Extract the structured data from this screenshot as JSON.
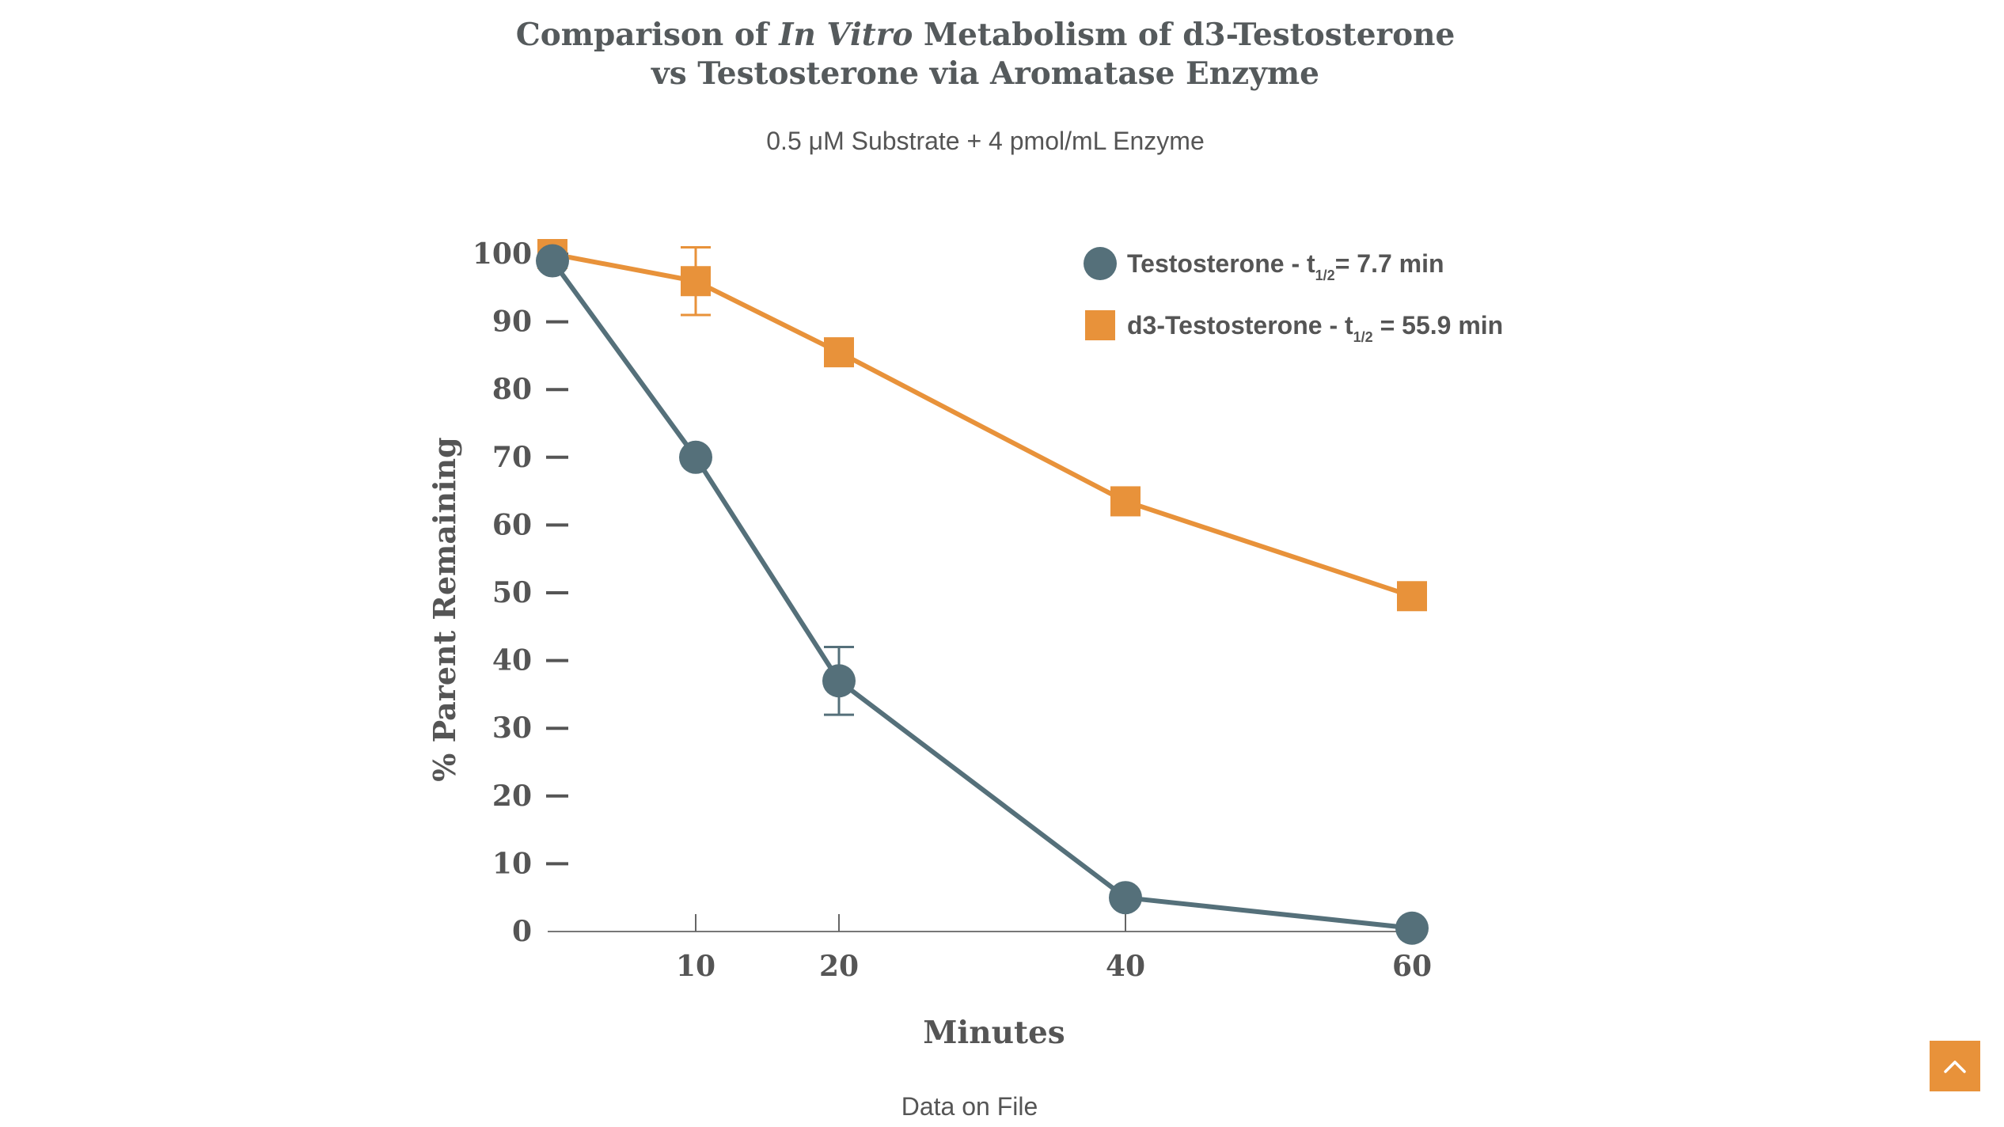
{
  "page": {
    "title_part1": "Comparison of ",
    "title_italic": "In Vitro",
    "title_part2": " Metabolism of d3-Testosterone",
    "title_line2": "vs Testosterone via Aromatase Enzyme",
    "subtitle": "0.5 μM Substrate + 4 pmol/mL Enzyme",
    "footnote": "Data on File",
    "scroll_top_icon": "chevron-up-icon"
  },
  "chart_data": {
    "type": "line",
    "title": "Comparison of In Vitro Metabolism of d3-Testosterone vs Testosterone via Aromatase Enzyme",
    "subtitle": "0.5 μM Substrate + 4 pmol/mL Enzyme",
    "xlabel": "Minutes",
    "ylabel": "% Parent Remaining",
    "x_ticks": [
      10,
      20,
      40,
      60
    ],
    "y_ticks": [
      0,
      10,
      20,
      30,
      40,
      50,
      60,
      70,
      80,
      90,
      100
    ],
    "xlim": [
      0,
      60
    ],
    "ylim": [
      0,
      100
    ],
    "legend_position": "top-right",
    "series": [
      {
        "name": "Testosterone",
        "legend_prefix": "Testosterone - t",
        "legend_sub": "1/2",
        "legend_suffix": "= 7.7 min",
        "marker": "circle",
        "color": "#55707a",
        "x": [
          0,
          10,
          20,
          40,
          60
        ],
        "y": [
          99,
          70,
          37,
          5,
          0.5
        ],
        "err": [
          0,
          0,
          5,
          0,
          0
        ]
      },
      {
        "name": "d3-Testosterone",
        "legend_prefix": "d3-Testosterone - t",
        "legend_sub": "1/2",
        "legend_suffix": " = 55.9 min",
        "marker": "square",
        "color": "#e8923a",
        "x": [
          0,
          10,
          20,
          40,
          60
        ],
        "y": [
          100,
          96,
          85.5,
          63.5,
          49.5
        ],
        "err": [
          0,
          5,
          0,
          0,
          0
        ]
      }
    ]
  }
}
